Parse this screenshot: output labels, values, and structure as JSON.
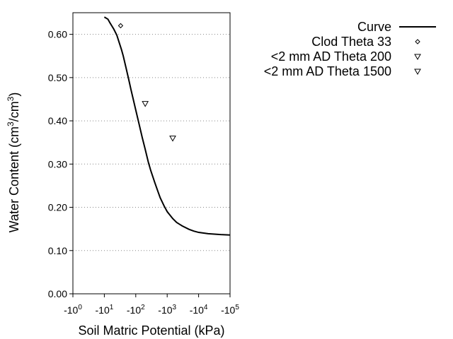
{
  "chart_data": {
    "type": "line",
    "title": "",
    "xlabel": "Soil Matric Potential (kPa)",
    "ylabel": {
      "prefix": "Water Content (cm",
      "sup1": "3",
      "middle": "/cm",
      "sup2": "3",
      "suffix": ")"
    },
    "x_scale": "log",
    "x_axis_note": "negative potentials; tick labels show -10^n",
    "xlim": [
      1,
      100000
    ],
    "ylim": [
      0.0,
      0.65
    ],
    "y_ticks": [
      0.0,
      0.1,
      0.2,
      0.3,
      0.4,
      0.5,
      0.6
    ],
    "y_tick_labels": [
      "0.00",
      "0.10",
      "0.20",
      "0.30",
      "0.40",
      "0.50",
      "0.60"
    ],
    "x_ticks": [
      {
        "value": 1,
        "base": "-10",
        "exp": "0"
      },
      {
        "value": 10,
        "base": "-10",
        "exp": "1"
      },
      {
        "value": 100,
        "base": "-10",
        "exp": "2"
      },
      {
        "value": 1000,
        "base": "-10",
        "exp": "3"
      },
      {
        "value": 10000,
        "base": "-10",
        "exp": "4"
      },
      {
        "value": 100000,
        "base": "-10",
        "exp": "5"
      }
    ],
    "grid": "horizontal dotted",
    "legend_position": "top-right, outside plot",
    "series": [
      {
        "name": "Curve",
        "kind": "line",
        "color": "#000000",
        "x": [
          10,
          13,
          15,
          20,
          25,
          30,
          35,
          40,
          50,
          60,
          70,
          80,
          100,
          130,
          160,
          200,
          250,
          300,
          400,
          500,
          600,
          800,
          1000,
          1500,
          2000,
          3000,
          5000,
          7000,
          10000,
          20000,
          50000,
          100000
        ],
        "y": [
          0.64,
          0.635,
          0.627,
          0.612,
          0.598,
          0.58,
          0.565,
          0.55,
          0.52,
          0.495,
          0.473,
          0.455,
          0.425,
          0.39,
          0.362,
          0.334,
          0.305,
          0.285,
          0.258,
          0.238,
          0.222,
          0.203,
          0.19,
          0.174,
          0.165,
          0.157,
          0.149,
          0.145,
          0.142,
          0.139,
          0.137,
          0.136
        ]
      },
      {
        "name": "Clod Theta 33",
        "kind": "scatter",
        "marker": "diamond",
        "x": [
          33
        ],
        "y": [
          0.62
        ]
      },
      {
        "name": "<2 mm AD Theta 200",
        "kind": "scatter",
        "marker": "triangle-down",
        "x": [
          200
        ],
        "y": [
          0.44
        ]
      },
      {
        "name": "<2 mm AD Theta 1500",
        "kind": "scatter",
        "marker": "triangle-down",
        "x": [
          1500
        ],
        "y": [
          0.36
        ]
      }
    ]
  }
}
